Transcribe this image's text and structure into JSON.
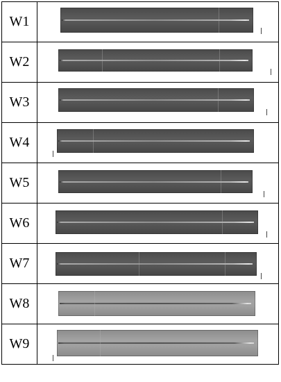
{
  "rows": [
    {
      "label": "W1",
      "tone": "dark"
    },
    {
      "label": "W2",
      "tone": "dark"
    },
    {
      "label": "W3",
      "tone": "dark"
    },
    {
      "label": "W4",
      "tone": "dark"
    },
    {
      "label": "W5",
      "tone": "dark"
    },
    {
      "label": "W6",
      "tone": "dark"
    },
    {
      "label": "W7",
      "tone": "dark"
    },
    {
      "label": "W8",
      "tone": "light"
    },
    {
      "label": "W9",
      "tone": "light"
    }
  ]
}
